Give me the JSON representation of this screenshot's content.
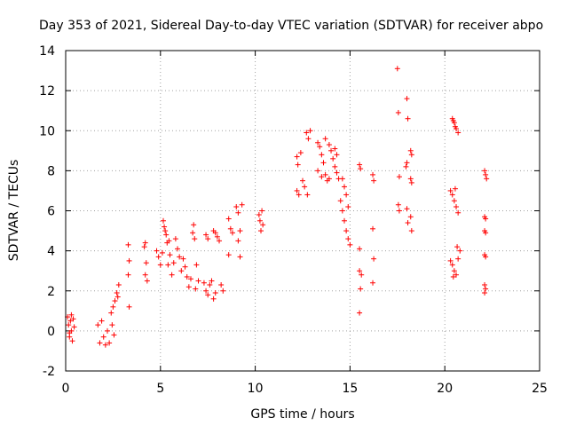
{
  "chart_data": {
    "type": "scatter",
    "title": "Day 353 of 2021, Sidereal Day-to-day VTEC variation (SDTVAR) for receiver abpo",
    "xlabel": "GPS time / hours",
    "ylabel": "SDTVAR / TECUs",
    "xlim": [
      0,
      25
    ],
    "ylim": [
      -2,
      14
    ],
    "xticks": [
      0,
      5,
      10,
      15,
      20,
      25
    ],
    "yticks": [
      -2,
      0,
      2,
      4,
      6,
      8,
      10,
      12,
      14
    ],
    "xtick_labels": [
      "0",
      "5",
      "10",
      "15",
      "20",
      "25"
    ],
    "ytick_labels": [
      "-2",
      "0",
      "2",
      "4",
      "6",
      "8",
      "10",
      "12",
      "14"
    ],
    "grid": true,
    "marker": "+",
    "color": "#ff0000",
    "series": [
      {
        "name": "SDTVAR",
        "points": [
          [
            0.1,
            0.7
          ],
          [
            0.15,
            0.3
          ],
          [
            0.2,
            -0.3
          ],
          [
            0.25,
            0.5
          ],
          [
            0.3,
            0.0
          ],
          [
            0.35,
            -0.5
          ],
          [
            0.4,
            0.6
          ],
          [
            0.45,
            0.2
          ],
          [
            0.3,
            0.8
          ],
          [
            0.2,
            -0.1
          ],
          [
            1.7,
            0.3
          ],
          [
            1.8,
            -0.6
          ],
          [
            1.9,
            0.5
          ],
          [
            2.0,
            -0.3
          ],
          [
            2.1,
            -0.7
          ],
          [
            2.2,
            0.0
          ],
          [
            2.3,
            -0.6
          ],
          [
            2.4,
            0.9
          ],
          [
            2.5,
            1.2
          ],
          [
            2.45,
            0.3
          ],
          [
            2.6,
            1.5
          ],
          [
            2.7,
            1.9
          ],
          [
            2.8,
            2.3
          ],
          [
            2.75,
            1.7
          ],
          [
            2.55,
            -0.2
          ],
          [
            3.3,
            4.3
          ],
          [
            3.35,
            3.5
          ],
          [
            3.3,
            2.8
          ],
          [
            3.35,
            1.2
          ],
          [
            4.2,
            4.4
          ],
          [
            4.25,
            3.4
          ],
          [
            4.2,
            2.8
          ],
          [
            4.3,
            2.5
          ],
          [
            4.15,
            4.2
          ],
          [
            4.8,
            4.0
          ],
          [
            4.9,
            3.7
          ],
          [
            5.0,
            3.3
          ],
          [
            5.1,
            3.9
          ],
          [
            5.15,
            5.5
          ],
          [
            5.2,
            5.2
          ],
          [
            5.3,
            4.8
          ],
          [
            5.35,
            4.4
          ],
          [
            5.4,
            3.3
          ],
          [
            5.5,
            3.8
          ],
          [
            5.6,
            2.8
          ],
          [
            5.7,
            3.4
          ],
          [
            5.8,
            4.6
          ],
          [
            5.9,
            4.1
          ],
          [
            6.0,
            3.7
          ],
          [
            6.1,
            3.0
          ],
          [
            5.25,
            5.0
          ],
          [
            5.45,
            4.5
          ],
          [
            6.2,
            3.6
          ],
          [
            6.3,
            3.2
          ],
          [
            6.4,
            2.7
          ],
          [
            6.5,
            2.2
          ],
          [
            6.6,
            2.6
          ],
          [
            6.7,
            4.9
          ],
          [
            6.8,
            4.6
          ],
          [
            6.9,
            3.3
          ],
          [
            7.0,
            2.5
          ],
          [
            6.75,
            5.3
          ],
          [
            6.85,
            2.1
          ],
          [
            7.3,
            2.4
          ],
          [
            7.4,
            2.0
          ],
          [
            7.5,
            1.8
          ],
          [
            7.6,
            2.3
          ],
          [
            7.7,
            2.5
          ],
          [
            7.8,
            1.6
          ],
          [
            7.9,
            1.9
          ],
          [
            7.4,
            4.8
          ],
          [
            7.5,
            4.6
          ],
          [
            7.8,
            5.0
          ],
          [
            7.9,
            4.9
          ],
          [
            8.0,
            4.7
          ],
          [
            8.1,
            4.5
          ],
          [
            8.2,
            2.3
          ],
          [
            8.3,
            2.0
          ],
          [
            8.6,
            5.6
          ],
          [
            8.7,
            5.1
          ],
          [
            8.6,
            3.8
          ],
          [
            8.8,
            4.9
          ],
          [
            9.0,
            6.2
          ],
          [
            9.1,
            5.9
          ],
          [
            9.2,
            3.7
          ],
          [
            9.1,
            4.5
          ],
          [
            9.2,
            5.0
          ],
          [
            9.3,
            6.3
          ],
          [
            10.2,
            5.8
          ],
          [
            10.25,
            5.5
          ],
          [
            10.3,
            5.0
          ],
          [
            10.35,
            6.0
          ],
          [
            10.4,
            5.3
          ],
          [
            12.2,
            8.7
          ],
          [
            12.25,
            8.3
          ],
          [
            12.2,
            7.0
          ],
          [
            12.3,
            6.8
          ],
          [
            12.4,
            8.9
          ],
          [
            12.5,
            7.5
          ],
          [
            12.6,
            7.2
          ],
          [
            12.7,
            9.9
          ],
          [
            12.8,
            9.6
          ],
          [
            12.9,
            10.0
          ],
          [
            12.75,
            6.8
          ],
          [
            13.3,
            9.4
          ],
          [
            13.4,
            9.2
          ],
          [
            13.5,
            8.8
          ],
          [
            13.6,
            8.4
          ],
          [
            13.7,
            7.8
          ],
          [
            13.8,
            7.5
          ],
          [
            13.9,
            9.3
          ],
          [
            14.0,
            9.0
          ],
          [
            14.1,
            8.6
          ],
          [
            14.2,
            8.2
          ],
          [
            14.3,
            7.9
          ],
          [
            14.4,
            7.6
          ],
          [
            14.5,
            6.5
          ],
          [
            14.6,
            6.0
          ],
          [
            14.7,
            5.5
          ],
          [
            14.8,
            5.0
          ],
          [
            14.9,
            4.6
          ],
          [
            15.0,
            4.3
          ],
          [
            14.6,
            7.6
          ],
          [
            14.7,
            7.2
          ],
          [
            14.8,
            6.8
          ],
          [
            14.9,
            6.2
          ],
          [
            14.3,
            8.8
          ],
          [
            14.2,
            9.1
          ],
          [
            13.9,
            7.6
          ],
          [
            13.5,
            7.7
          ],
          [
            13.3,
            8.0
          ],
          [
            13.7,
            9.6
          ],
          [
            15.5,
            8.3
          ],
          [
            15.55,
            8.1
          ],
          [
            15.5,
            4.1
          ],
          [
            15.5,
            3.0
          ],
          [
            15.55,
            2.1
          ],
          [
            15.5,
            0.9
          ],
          [
            15.6,
            2.8
          ],
          [
            16.2,
            7.8
          ],
          [
            16.25,
            7.5
          ],
          [
            16.2,
            5.1
          ],
          [
            16.25,
            3.6
          ],
          [
            16.2,
            2.4
          ],
          [
            17.5,
            13.1
          ],
          [
            17.55,
            10.9
          ],
          [
            17.6,
            7.7
          ],
          [
            17.55,
            6.3
          ],
          [
            17.6,
            6.0
          ],
          [
            18.0,
            11.6
          ],
          [
            18.05,
            10.6
          ],
          [
            18.0,
            8.4
          ],
          [
            17.95,
            8.2
          ],
          [
            18.0,
            6.1
          ],
          [
            18.05,
            5.4
          ],
          [
            18.2,
            9.0
          ],
          [
            18.25,
            8.8
          ],
          [
            18.2,
            7.6
          ],
          [
            18.25,
            7.4
          ],
          [
            18.2,
            5.7
          ],
          [
            18.25,
            5.0
          ],
          [
            20.4,
            10.6
          ],
          [
            20.5,
            10.4
          ],
          [
            20.6,
            10.1
          ],
          [
            20.7,
            9.9
          ],
          [
            20.45,
            10.5
          ],
          [
            20.55,
            10.2
          ],
          [
            20.3,
            7.0
          ],
          [
            20.4,
            6.8
          ],
          [
            20.5,
            6.5
          ],
          [
            20.6,
            6.2
          ],
          [
            20.7,
            5.9
          ],
          [
            20.55,
            7.1
          ],
          [
            20.3,
            3.5
          ],
          [
            20.4,
            3.3
          ],
          [
            20.5,
            3.0
          ],
          [
            20.6,
            2.8
          ],
          [
            20.7,
            3.6
          ],
          [
            20.8,
            4.0
          ],
          [
            20.65,
            4.2
          ],
          [
            20.45,
            2.7
          ],
          [
            22.1,
            8.0
          ],
          [
            22.15,
            7.8
          ],
          [
            22.2,
            7.6
          ],
          [
            22.1,
            5.7
          ],
          [
            22.15,
            5.6
          ],
          [
            22.1,
            5.0
          ],
          [
            22.15,
            4.9
          ],
          [
            22.1,
            3.8
          ],
          [
            22.15,
            3.7
          ],
          [
            22.1,
            2.3
          ],
          [
            22.15,
            2.1
          ],
          [
            22.1,
            1.9
          ]
        ]
      }
    ]
  }
}
